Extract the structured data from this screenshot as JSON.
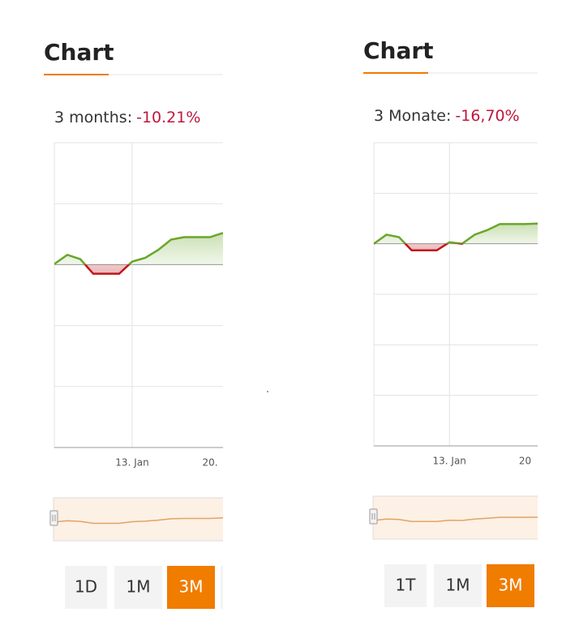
{
  "chart_data": [
    {
      "type": "line",
      "title": "Chart",
      "period_label": "3 months:",
      "change": "-10.21%",
      "categories": [
        null,
        null,
        null,
        null,
        null,
        null,
        "13. Jan",
        null,
        null,
        null,
        null,
        null,
        "20.",
        null
      ],
      "values": [
        0.01,
        0.16,
        0.09,
        -0.15,
        -0.15,
        -0.15,
        0.05,
        0.11,
        0.24,
        0.41,
        0.45,
        0.45,
        0.45,
        0.52
      ],
      "ylim": [
        -3,
        2
      ],
      "yticks": [
        -2,
        -1,
        0,
        1,
        2
      ],
      "grid": true,
      "up_color": "#6aa62a",
      "down_color": "#c0161d",
      "ranges": [
        "1D",
        "1M",
        "3M"
      ],
      "active_range": 2
    },
    {
      "type": "line",
      "title": "Chart",
      "period_label": "3 Monate:",
      "change": "-16,70%",
      "categories": [
        null,
        null,
        null,
        null,
        null,
        null,
        "13. Jan",
        null,
        null,
        null,
        null,
        null,
        "20",
        null
      ],
      "values": [
        0,
        0.18,
        0.13,
        -0.13,
        -0.13,
        -0.13,
        0.03,
        0,
        0.18,
        0.27,
        0.39,
        0.39,
        0.39,
        0.4
      ],
      "ylim": [
        -4,
        2
      ],
      "yticks": [
        -3,
        -2,
        -1,
        0,
        1,
        2
      ],
      "grid": true,
      "up_color": "#6aa62a",
      "down_color": "#c0161d",
      "ranges": [
        "1T",
        "1M",
        "3M"
      ],
      "active_range": 2
    }
  ]
}
